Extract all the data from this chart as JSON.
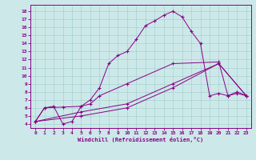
{
  "bg_color": "#cce8e8",
  "line_color": "#880088",
  "xlabel": "Windchill (Refroidissement éolien,°C)",
  "xlim_min": -0.5,
  "xlim_max": 23.5,
  "ylim_min": 3.5,
  "ylim_max": 18.8,
  "xticks": [
    0,
    1,
    2,
    3,
    4,
    5,
    6,
    7,
    8,
    9,
    10,
    11,
    12,
    13,
    14,
    15,
    16,
    17,
    18,
    19,
    20,
    21,
    22,
    23
  ],
  "yticks": [
    4,
    5,
    6,
    7,
    8,
    9,
    10,
    11,
    12,
    13,
    14,
    15,
    16,
    17,
    18
  ],
  "curve1_x": [
    0,
    1,
    2,
    3,
    4,
    5,
    6,
    7,
    8,
    9,
    10,
    11,
    12,
    13,
    14,
    15,
    16,
    17,
    18,
    19,
    20,
    21,
    22,
    23
  ],
  "curve1_y": [
    4.3,
    6.0,
    6.2,
    4.0,
    4.3,
    6.2,
    7.0,
    8.5,
    11.5,
    12.5,
    13.0,
    14.5,
    16.2,
    16.8,
    17.5,
    18.0,
    17.3,
    15.5,
    14.0,
    7.5,
    7.8,
    7.5,
    7.8,
    7.5
  ],
  "curve2_x": [
    0,
    1,
    3,
    5,
    6,
    7,
    10,
    15,
    20,
    21,
    22,
    23
  ],
  "curve2_y": [
    4.3,
    6.0,
    6.1,
    6.2,
    6.5,
    7.5,
    9.0,
    11.5,
    11.7,
    7.5,
    8.0,
    7.5
  ],
  "curve3_x": [
    0,
    5,
    10,
    15,
    20,
    23
  ],
  "curve3_y": [
    4.3,
    5.0,
    6.0,
    8.5,
    11.5,
    7.5
  ],
  "curve4_x": [
    0,
    5,
    10,
    15,
    20,
    23
  ],
  "curve4_y": [
    4.3,
    5.5,
    6.5,
    9.0,
    11.5,
    7.5
  ]
}
